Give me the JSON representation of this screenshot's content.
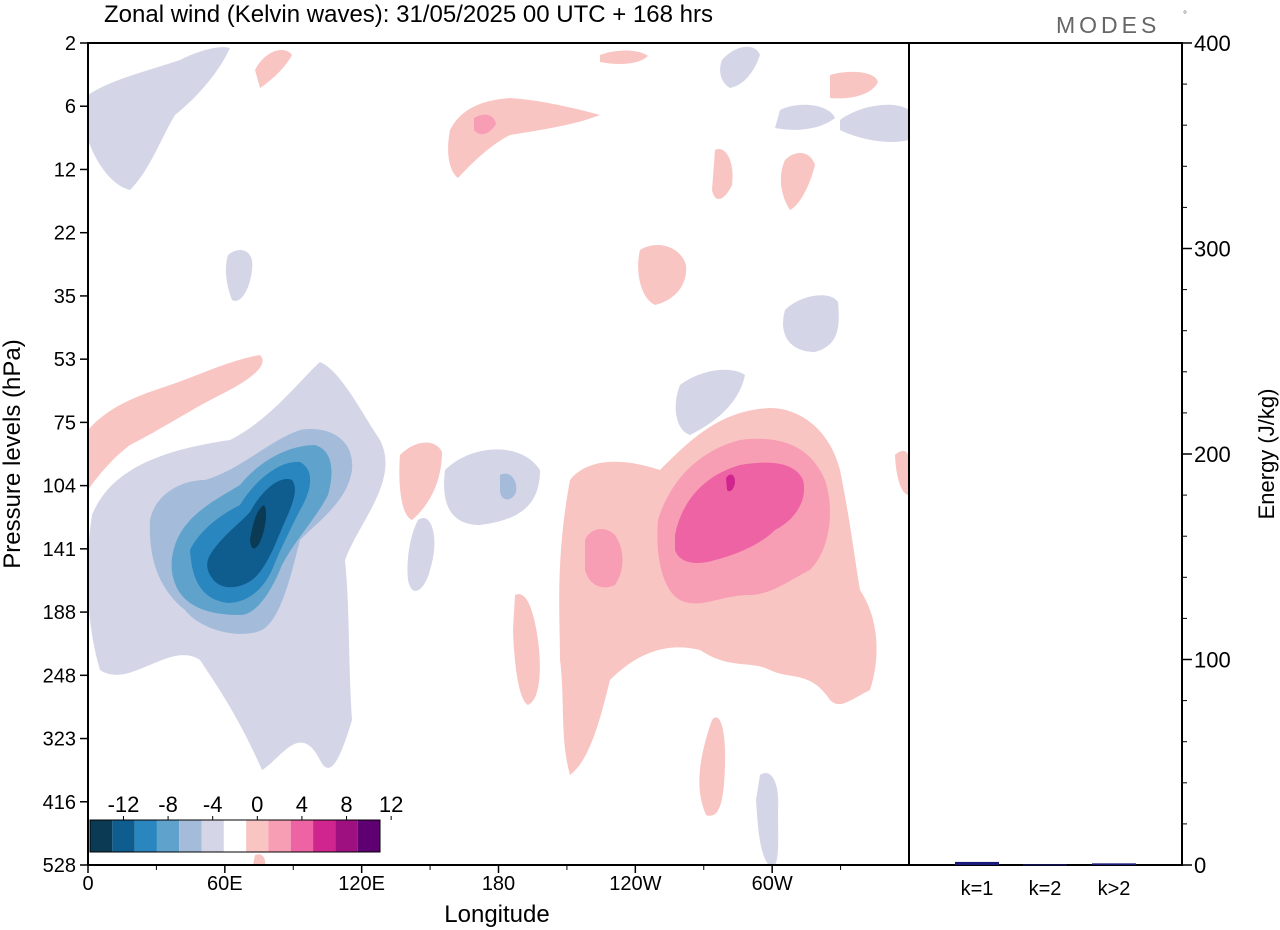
{
  "title": "Zonal wind (Kelvin waves):  31/05/2025  00 UTC  + 168 hrs",
  "brand": "MODES",
  "brand_mark": "°",
  "chart_data": [
    {
      "type": "heatmap",
      "panel": "left",
      "xlabel": "Longitude",
      "ylabel": "Pressure levels (hPa)",
      "x_ticks": [
        {
          "lon": 0,
          "label": "0"
        },
        {
          "lon": 60,
          "label": "60E"
        },
        {
          "lon": 120,
          "label": "120E"
        },
        {
          "lon": 180,
          "label": "180"
        },
        {
          "lon": 240,
          "label": "120W"
        },
        {
          "lon": 300,
          "label": "60W"
        }
      ],
      "xlim": [
        0,
        360
      ],
      "y_levels": [
        "2",
        "6",
        "12",
        "22",
        "35",
        "53",
        "75",
        "104",
        "141",
        "188",
        "248",
        "323",
        "416",
        "528"
      ],
      "colorbar": {
        "labels": [
          "-12",
          "-8",
          "-4",
          "0",
          "4",
          "8",
          "12"
        ],
        "colors": [
          "#0b3a55",
          "#0e5d8e",
          "#2a86be",
          "#5fa3cc",
          "#a4bcda",
          "#d4d6e8",
          "#ffffff",
          "#f9c5c3",
          "#f79eb4",
          "#ee63a4",
          "#d0248f",
          "#9e1080",
          "#5f0072"
        ]
      },
      "features": [
        {
          "lon": 72,
          "level_index": 7.85,
          "value": -12
        },
        {
          "lon": 70,
          "level_index": 7.9,
          "value": -10
        },
        {
          "lon": 68,
          "level_index": 8.0,
          "value": -8
        },
        {
          "lon": 66,
          "level_index": 8.1,
          "value": -6
        },
        {
          "lon": 62,
          "level_index": 8.2,
          "value": -4
        },
        {
          "lon": 62,
          "level_index": 8.4,
          "value": -2
        },
        {
          "lon": 185,
          "level_index": 7.2,
          "value": -4
        },
        {
          "lon": 318,
          "level_index": 4.4,
          "value": -2
        },
        {
          "lon": 280,
          "level_index": 7.6,
          "value": 8
        },
        {
          "lon": 282,
          "level_index": 7.55,
          "value": 6
        },
        {
          "lon": 282,
          "level_index": 7.6,
          "value": 4
        },
        {
          "lon": 282,
          "level_index": 7.7,
          "value": 2
        },
        {
          "lon": 228,
          "level_index": 8.0,
          "value": 4
        },
        {
          "lon": 175,
          "level_index": 1.3,
          "value": 4
        },
        {
          "lon": 2,
          "level_index": 7.0,
          "value": 2
        }
      ]
    },
    {
      "type": "bar",
      "panel": "right",
      "categories": [
        "k=1",
        "k=2",
        "k>2"
      ],
      "values": [
        1.5,
        0.3,
        0.8
      ],
      "ylabel": "Energy (J/kg)",
      "ylim": [
        0,
        400
      ],
      "y_ticks": [
        0,
        100,
        200,
        300,
        400
      ],
      "bar_color": "#1a1a7a"
    }
  ]
}
